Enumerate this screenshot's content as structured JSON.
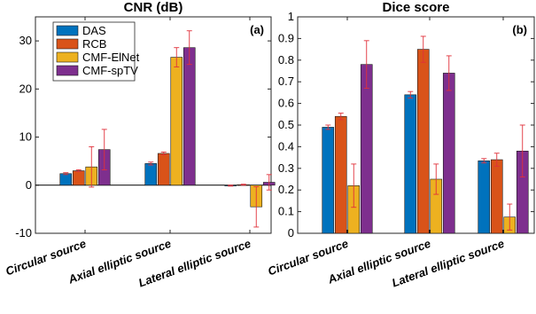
{
  "colors": {
    "DAS": "#0072BD",
    "RCB": "#D95319",
    "CMF-ElNet": "#EDB120",
    "CMF-spTV": "#7E2F8E",
    "error_bar": "#e0303a",
    "axis": "#262626",
    "zero_line": "#000000"
  },
  "chart_data": [
    {
      "type": "bar",
      "title": "CNR (dB)",
      "panel_label": "(a)",
      "xlabel": "",
      "ylabel": "",
      "ylim": [
        -10,
        35
      ],
      "yticks": [
        -10,
        0,
        10,
        20,
        30
      ],
      "categories": [
        "Circular source",
        "Axial elliptic source",
        "Lateral elliptic source"
      ],
      "grid": false,
      "legend": {
        "position": "top-left",
        "entries": [
          "DAS",
          "RCB",
          "CMF-ElNet",
          "CMF-spTV"
        ]
      },
      "series": [
        {
          "name": "DAS",
          "values": [
            2.4,
            4.5,
            -0.1
          ],
          "err": [
            0.2,
            0.3,
            0.1
          ]
        },
        {
          "name": "RCB",
          "values": [
            3.0,
            6.6,
            0.1
          ],
          "err": [
            0.2,
            0.3,
            0.1
          ]
        },
        {
          "name": "CMF-ElNet",
          "values": [
            3.8,
            26.6,
            -4.5
          ],
          "err": [
            4.2,
            2.0,
            4.2
          ]
        },
        {
          "name": "CMF-spTV",
          "values": [
            7.4,
            28.6,
            0.6
          ],
          "err": [
            4.2,
            3.5,
            1.6
          ]
        }
      ]
    },
    {
      "type": "bar",
      "title": "Dice score",
      "panel_label": "(b)",
      "xlabel": "",
      "ylabel": "",
      "ylim": [
        0,
        1
      ],
      "yticks": [
        0,
        0.1,
        0.2,
        0.3,
        0.4,
        0.5,
        0.6,
        0.7,
        0.8,
        0.9,
        1
      ],
      "categories": [
        "Circular source",
        "Axial elliptic source",
        "Lateral elliptic source"
      ],
      "grid": false,
      "series": [
        {
          "name": "DAS",
          "values": [
            0.49,
            0.64,
            0.335
          ],
          "err": [
            0.01,
            0.015,
            0.01
          ]
        },
        {
          "name": "RCB",
          "values": [
            0.54,
            0.85,
            0.34
          ],
          "err": [
            0.015,
            0.06,
            0.03
          ]
        },
        {
          "name": "CMF-ElNet",
          "values": [
            0.22,
            0.25,
            0.075
          ],
          "err": [
            0.1,
            0.07,
            0.06
          ]
        },
        {
          "name": "CMF-spTV",
          "values": [
            0.78,
            0.74,
            0.38
          ],
          "err": [
            0.11,
            0.08,
            0.12
          ]
        }
      ]
    }
  ]
}
